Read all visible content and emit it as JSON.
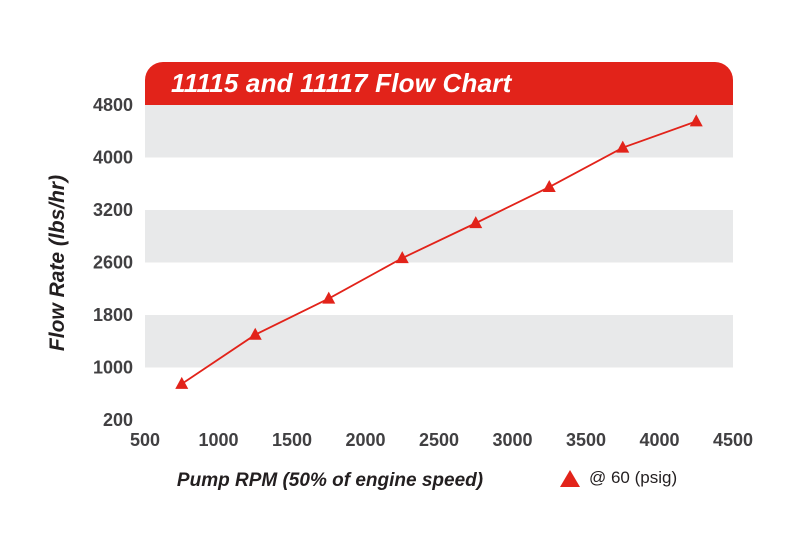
{
  "title": "11115 and 11117 Flow Chart",
  "colors": {
    "red": "#e2231a",
    "band_gray": "#e8e9ea",
    "band_white": "#ffffff",
    "tick_text": "#414042",
    "title_text": "#ffffff"
  },
  "chart_data": {
    "type": "line",
    "title": "11115 and 11117 Flow Chart",
    "xlabel": "Pump RPM (50% of engine speed)",
    "ylabel": "Flow Rate (lbs/hr)",
    "x_ticks": [
      500,
      1000,
      1500,
      2000,
      2500,
      3000,
      3500,
      4000,
      4500
    ],
    "y_ticks": [
      200,
      1000,
      1800,
      2600,
      3200,
      4000,
      4800
    ],
    "xlim": [
      500,
      4500
    ],
    "grid": "horizontal-alternating-bands",
    "legend_position": "bottom-right",
    "legend": {
      "label": "@ 60 (psig)",
      "marker": "red-triangle"
    },
    "series": [
      {
        "name": "@ 60 (psig)",
        "marker": "triangle",
        "x": [
          750,
          1250,
          1750,
          2250,
          2750,
          3250,
          3750,
          4250
        ],
        "y": [
          750,
          1500,
          2050,
          2650,
          3050,
          3550,
          4150,
          4550
        ]
      }
    ]
  }
}
